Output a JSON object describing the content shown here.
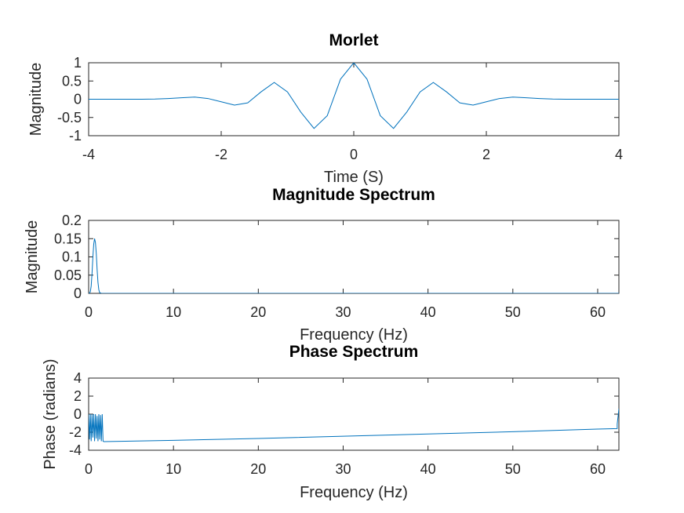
{
  "colors": {
    "line": "#0072BD",
    "axis": "#262626",
    "background": "#ffffff"
  },
  "chart_data": [
    {
      "type": "line",
      "title": "Morlet",
      "xlabel": "Time (S)",
      "ylabel": "Magnitude",
      "xlim": [
        -4,
        4
      ],
      "ylim": [
        -1,
        1
      ],
      "xticks": [
        -4,
        -2,
        0,
        2,
        4
      ],
      "xtick_labels": [
        "-4",
        "-2",
        "0",
        "2",
        "4"
      ],
      "yticks": [
        -1,
        -0.5,
        0,
        0.5,
        1
      ],
      "ytick_labels": [
        "-1",
        "-0.5",
        "0",
        "0.5",
        "1"
      ],
      "grid": false,
      "series": [
        {
          "x": [
            -4,
            -3.6,
            -3.2,
            -3.0,
            -2.8,
            -2.6,
            -2.4,
            -2.2,
            -2.0,
            -1.8,
            -1.6,
            -1.4,
            -1.2,
            -1.0,
            -0.8,
            -0.6,
            -0.4,
            -0.2,
            0,
            0.2,
            0.4,
            0.6,
            0.8,
            1.0,
            1.2,
            1.4,
            1.6,
            1.8,
            2.0,
            2.2,
            2.4,
            2.6,
            2.8,
            3.0,
            3.2,
            3.6,
            4
          ],
          "y": [
            0.0,
            0.0,
            0.0,
            0.005,
            0.02,
            0.04,
            0.06,
            0.02,
            -0.07,
            -0.16,
            -0.1,
            0.2,
            0.46,
            0.2,
            -0.35,
            -0.8,
            -0.45,
            0.55,
            1.0,
            0.55,
            -0.45,
            -0.8,
            -0.35,
            0.2,
            0.46,
            0.2,
            -0.1,
            -0.16,
            -0.07,
            0.02,
            0.06,
            0.04,
            0.02,
            0.005,
            0.0,
            0.0,
            0.0
          ]
        }
      ]
    },
    {
      "type": "line",
      "title": "Magnitude Spectrum",
      "xlabel": "Frequency (Hz)",
      "ylabel": "Magnitude",
      "xlim": [
        0,
        62.5
      ],
      "ylim": [
        0,
        0.2
      ],
      "xticks": [
        0,
        10,
        20,
        30,
        40,
        50,
        60
      ],
      "xtick_labels": [
        "0",
        "10",
        "20",
        "30",
        "40",
        "50",
        "60"
      ],
      "yticks": [
        0,
        0.05,
        0.1,
        0.15,
        0.2
      ],
      "ytick_labels": [
        "0",
        "0.05",
        "0.1",
        "0.15",
        "0.2"
      ],
      "grid": false,
      "series": [
        {
          "x": [
            0,
            0.1,
            0.2,
            0.3,
            0.4,
            0.5,
            0.6,
            0.7,
            0.8,
            0.9,
            1.0,
            1.1,
            1.2,
            1.3,
            1.5,
            2,
            10,
            20,
            30,
            40,
            50,
            62.5
          ],
          "y": [
            0.0,
            0.0,
            0.005,
            0.02,
            0.055,
            0.1,
            0.135,
            0.15,
            0.14,
            0.11,
            0.065,
            0.03,
            0.01,
            0.002,
            0.0,
            0.0,
            0.0,
            0.0,
            0.0,
            0.0,
            0.0,
            0.0
          ]
        }
      ]
    },
    {
      "type": "line",
      "title": "Phase Spectrum",
      "xlabel": "Frequency (Hz)",
      "ylabel": "Phase (radians)",
      "xlim": [
        0,
        62.5
      ],
      "ylim": [
        -4,
        4
      ],
      "xticks": [
        0,
        10,
        20,
        30,
        40,
        50,
        60
      ],
      "xtick_labels": [
        "0",
        "10",
        "20",
        "30",
        "40",
        "50",
        "60"
      ],
      "yticks": [
        -4,
        -2,
        0,
        2,
        4
      ],
      "ytick_labels": [
        "-4",
        "-2",
        "0",
        "2",
        "4"
      ],
      "grid": false,
      "series": [
        {
          "x": [
            0,
            0.1,
            0.2,
            0.3,
            0.4,
            0.5,
            0.6,
            0.7,
            0.8,
            0.9,
            1.0,
            1.1,
            1.2,
            1.3,
            1.4,
            1.5,
            1.6,
            1.7,
            1.8,
            10,
            20,
            30,
            40,
            50,
            60,
            62.3,
            62.3,
            62.5
          ],
          "y": [
            0.0,
            -2.8,
            0.0,
            -3.0,
            0.0,
            -2.6,
            0.0,
            -3.0,
            0.0,
            -2.7,
            -0.2,
            -3.0,
            0.0,
            -2.8,
            -0.1,
            -3.0,
            0.0,
            -3.0,
            -3.04,
            -2.9,
            -2.7,
            -2.45,
            -2.2,
            -1.95,
            -1.65,
            -1.6,
            -1.1,
            0.6
          ]
        }
      ]
    }
  ]
}
